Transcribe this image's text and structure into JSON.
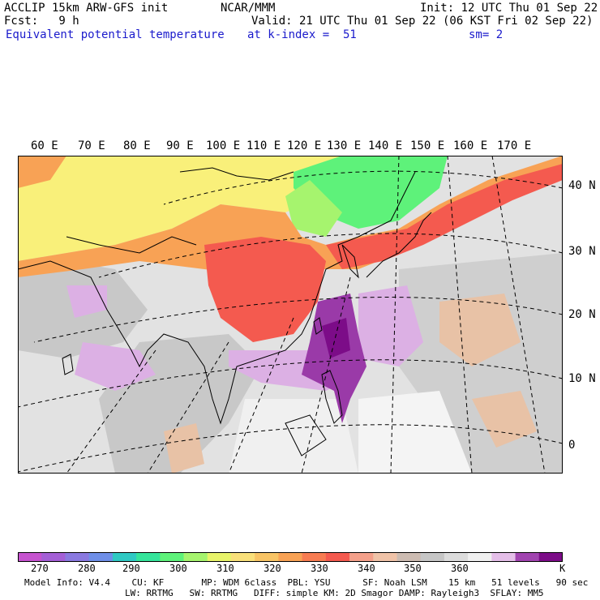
{
  "header": {
    "line1_left": "ACCLIP 15km ARW-GFS init",
    "line1_mid": "NCAR/MMM",
    "line1_right": "Init: 12 UTC Thu 01 Sep 22",
    "line2_left": "Fcst:   9 h",
    "line2_right": "Valid: 21 UTC Thu 01 Sep 22 (06 KST Fri 02 Sep 22)",
    "line3_left": "Equivalent potential temperature",
    "line3_mid": "at k-index =  51",
    "line3_right": "sm= 2"
  },
  "lon_labels": [
    "60 E",
    "70 E",
    "80 E",
    "90 E",
    "100 E",
    "110 E",
    "120 E",
    "130 E",
    "140 E",
    "150 E",
    "160 E",
    "170 E"
  ],
  "lat_labels": [
    "40 N",
    "30 N",
    "20 N",
    "10 N",
    "0"
  ],
  "colorbar": {
    "unit": "K",
    "ticks": [
      "270",
      "280",
      "290",
      "300",
      "310",
      "320",
      "330",
      "340",
      "350",
      "360"
    ],
    "colors": [
      "#c653cf",
      "#a45fd6",
      "#8a79e0",
      "#6f8fe8",
      "#2fc9c3",
      "#35e59b",
      "#5ef27a",
      "#a6f46e",
      "#e8f46a",
      "#f9e07a",
      "#f8c465",
      "#f8a255",
      "#f77c52",
      "#f45a4f",
      "#f4a08a",
      "#f0c3a8",
      "#cdbcb2",
      "#c6c6c6",
      "#dcdcdc",
      "#f0f0f0",
      "#e4bee8",
      "#a144b0",
      "#7c0c88"
    ]
  },
  "footer": {
    "line1": "Model Info: V4.4    CU: KF       MP: WDM 6class  PBL: YSU      SF: Noah LSM    15 km   51 levels   90 sec",
    "line2": "LW: RRTMG   SW: RRTMG   DIFF: simple KM: 2D Smagor DAMP: Rayleigh3  SFLAY: MM5"
  },
  "map_colors": {
    "yellow": "#f9f07a",
    "orange": "#f8a255",
    "red": "#f45a4f",
    "green": "#5ef27a",
    "lightgreen": "#a6f46e",
    "gray": "#c8c8c8",
    "lightgray": "#e0e0e0",
    "tan": "#e8c2a6",
    "lilac": "#dcb0e4",
    "purple": "#9a3aa8",
    "darkpurple": "#7c0c88",
    "white": "#f4f4f4"
  }
}
